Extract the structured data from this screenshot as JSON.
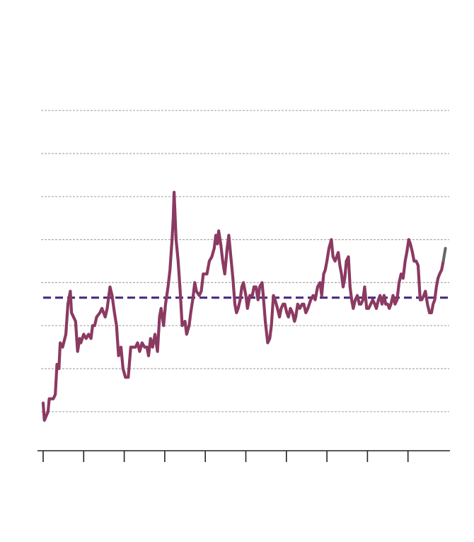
{
  "chart_data": {
    "type": "line",
    "title": "",
    "xlabel": "",
    "ylabel": "",
    "grid": true,
    "ylim": [
      0,
      9
    ],
    "xlim": [
      0,
      100
    ],
    "colors": {
      "line": "#8b3a62",
      "line_end": "#666666",
      "reference": "#4b2a82",
      "grid": "#aaaaaa",
      "axis": "#222222"
    },
    "y_gridlines": [
      1,
      2,
      3,
      4,
      5,
      6,
      7,
      8
    ],
    "x_ticks": [
      0,
      10,
      20,
      30,
      40,
      50,
      60,
      70,
      80,
      90
    ],
    "reference_line": {
      "y": 3.65,
      "style": "dashed"
    },
    "series": [
      {
        "values": [
          [
            0.0,
            1.2
          ],
          [
            0.3,
            0.8
          ],
          [
            1.2,
            1.0
          ],
          [
            1.5,
            1.3
          ],
          [
            2.5,
            1.3
          ],
          [
            3.0,
            1.4
          ],
          [
            3.4,
            2.1
          ],
          [
            3.9,
            2.0
          ],
          [
            4.2,
            2.6
          ],
          [
            4.8,
            2.5
          ],
          [
            5.6,
            2.8
          ],
          [
            6.1,
            3.5
          ],
          [
            6.7,
            3.8
          ],
          [
            7.0,
            3.3
          ],
          [
            8.0,
            3.1
          ],
          [
            8.5,
            2.4
          ],
          [
            9.0,
            2.7
          ],
          [
            9.3,
            2.6
          ],
          [
            10.0,
            2.8
          ],
          [
            10.6,
            2.7
          ],
          [
            11.2,
            2.8
          ],
          [
            11.8,
            2.7
          ],
          [
            12.2,
            3.0
          ],
          [
            12.7,
            3.0
          ],
          [
            13.2,
            3.2
          ],
          [
            14.0,
            3.3
          ],
          [
            14.5,
            3.4
          ],
          [
            15.3,
            3.2
          ],
          [
            15.8,
            3.4
          ],
          [
            16.5,
            3.9
          ],
          [
            17.0,
            3.7
          ],
          [
            17.6,
            3.3
          ],
          [
            18.1,
            3.0
          ],
          [
            18.6,
            2.3
          ],
          [
            19.2,
            2.5
          ],
          [
            19.7,
            2.0
          ],
          [
            20.3,
            1.8
          ],
          [
            21.0,
            1.8
          ],
          [
            21.6,
            2.5
          ],
          [
            22.3,
            2.5
          ],
          [
            22.8,
            2.5
          ],
          [
            23.3,
            2.6
          ],
          [
            23.8,
            2.4
          ],
          [
            24.4,
            2.6
          ],
          [
            25.0,
            2.5
          ],
          [
            25.6,
            2.5
          ],
          [
            26.0,
            2.3
          ],
          [
            26.5,
            2.7
          ],
          [
            27.0,
            2.5
          ],
          [
            27.6,
            2.8
          ],
          [
            28.2,
            2.4
          ],
          [
            28.7,
            3.2
          ],
          [
            29.1,
            3.4
          ],
          [
            29.7,
            3.0
          ],
          [
            30.2,
            3.5
          ],
          [
            30.8,
            3.9
          ],
          [
            31.3,
            4.3
          ],
          [
            31.8,
            5.0
          ],
          [
            32.1,
            5.5
          ],
          [
            32.3,
            6.1
          ],
          [
            32.8,
            5.0
          ],
          [
            33.3,
            4.5
          ],
          [
            33.8,
            3.8
          ],
          [
            34.3,
            3.0
          ],
          [
            35.0,
            3.1
          ],
          [
            35.4,
            2.8
          ],
          [
            36.0,
            3.0
          ],
          [
            36.4,
            3.3
          ],
          [
            36.9,
            3.6
          ],
          [
            37.4,
            4.0
          ],
          [
            37.8,
            3.8
          ],
          [
            38.5,
            3.7
          ],
          [
            39.0,
            3.8
          ],
          [
            39.5,
            4.2
          ],
          [
            40.4,
            4.2
          ],
          [
            41.0,
            4.5
          ],
          [
            41.6,
            4.6
          ],
          [
            42.2,
            4.8
          ],
          [
            42.6,
            5.1
          ],
          [
            43.0,
            4.9
          ],
          [
            43.3,
            5.2
          ],
          [
            43.8,
            4.9
          ],
          [
            44.3,
            4.5
          ],
          [
            44.8,
            4.2
          ],
          [
            45.4,
            4.8
          ],
          [
            45.8,
            5.1
          ],
          [
            46.3,
            4.6
          ],
          [
            46.8,
            4.1
          ],
          [
            47.3,
            3.5
          ],
          [
            47.7,
            3.3
          ],
          [
            48.1,
            3.4
          ],
          [
            48.6,
            3.6
          ],
          [
            49.0,
            3.9
          ],
          [
            49.4,
            4.0
          ],
          [
            50.0,
            3.7
          ],
          [
            50.4,
            3.4
          ],
          [
            51.0,
            3.7
          ],
          [
            51.6,
            3.7
          ],
          [
            52.0,
            3.9
          ],
          [
            52.5,
            3.9
          ],
          [
            53.0,
            3.6
          ],
          [
            53.4,
            3.9
          ],
          [
            54.0,
            4.0
          ],
          [
            54.3,
            3.7
          ],
          [
            54.8,
            3.1
          ],
          [
            55.4,
            2.6
          ],
          [
            55.9,
            2.7
          ],
          [
            56.3,
            3.0
          ],
          [
            56.8,
            3.7
          ],
          [
            57.2,
            3.6
          ],
          [
            57.8,
            3.4
          ],
          [
            58.3,
            3.2
          ],
          [
            58.7,
            3.4
          ],
          [
            59.2,
            3.5
          ],
          [
            59.6,
            3.5
          ],
          [
            60.1,
            3.3
          ],
          [
            60.5,
            3.2
          ],
          [
            61.0,
            3.4
          ],
          [
            61.5,
            3.3
          ],
          [
            62.0,
            3.1
          ],
          [
            62.3,
            3.2
          ],
          [
            62.8,
            3.5
          ],
          [
            63.3,
            3.4
          ],
          [
            63.9,
            3.5
          ],
          [
            64.3,
            3.5
          ],
          [
            64.8,
            3.3
          ],
          [
            65.3,
            3.4
          ],
          [
            66.0,
            3.6
          ],
          [
            66.6,
            3.7
          ],
          [
            67.1,
            3.6
          ],
          [
            67.7,
            3.9
          ],
          [
            68.3,
            4.0
          ],
          [
            68.7,
            3.7
          ],
          [
            69.2,
            4.2
          ],
          [
            69.6,
            4.3
          ],
          [
            70.0,
            4.5
          ],
          [
            70.5,
            4.8
          ],
          [
            71.1,
            5.0
          ],
          [
            71.5,
            4.6
          ],
          [
            72.0,
            4.5
          ],
          [
            72.4,
            4.6
          ],
          [
            72.8,
            4.7
          ],
          [
            73.2,
            4.4
          ],
          [
            73.6,
            4.2
          ],
          [
            74.0,
            3.9
          ],
          [
            74.4,
            4.1
          ],
          [
            74.8,
            4.5
          ],
          [
            75.3,
            4.6
          ],
          [
            75.7,
            3.9
          ],
          [
            76.1,
            3.6
          ],
          [
            76.5,
            3.4
          ],
          [
            77.0,
            3.6
          ],
          [
            77.5,
            3.7
          ],
          [
            78.0,
            3.5
          ],
          [
            78.4,
            3.5
          ],
          [
            78.9,
            3.6
          ],
          [
            79.3,
            3.9
          ],
          [
            79.8,
            3.4
          ],
          [
            80.3,
            3.4
          ],
          [
            80.8,
            3.5
          ],
          [
            81.3,
            3.6
          ],
          [
            81.8,
            3.5
          ],
          [
            82.2,
            3.4
          ],
          [
            82.7,
            3.6
          ],
          [
            83.1,
            3.7
          ],
          [
            83.6,
            3.5
          ],
          [
            84.1,
            3.7
          ],
          [
            84.5,
            3.5
          ],
          [
            85.0,
            3.5
          ],
          [
            85.4,
            3.4
          ],
          [
            85.8,
            3.5
          ],
          [
            86.3,
            3.7
          ],
          [
            86.8,
            3.5
          ],
          [
            87.3,
            3.6
          ],
          [
            87.8,
            4.0
          ],
          [
            88.3,
            4.2
          ],
          [
            88.8,
            4.1
          ],
          [
            89.3,
            4.5
          ],
          [
            89.7,
            4.7
          ],
          [
            90.2,
            5.0
          ],
          [
            90.6,
            4.9
          ],
          [
            91.1,
            4.7
          ],
          [
            91.5,
            4.5
          ],
          [
            92.0,
            4.5
          ],
          [
            92.5,
            4.4
          ],
          [
            93.0,
            3.6
          ],
          [
            93.4,
            3.6
          ],
          [
            93.9,
            3.7
          ],
          [
            94.3,
            3.8
          ],
          [
            94.8,
            3.5
          ],
          [
            95.3,
            3.3
          ],
          [
            95.8,
            3.3
          ],
          [
            96.2,
            3.5
          ],
          [
            96.6,
            3.6
          ],
          [
            97.0,
            3.9
          ],
          [
            97.4,
            4.1
          ],
          [
            97.8,
            4.2
          ],
          [
            98.3,
            4.3
          ],
          [
            98.7,
            4.5
          ]
        ]
      }
    ]
  }
}
